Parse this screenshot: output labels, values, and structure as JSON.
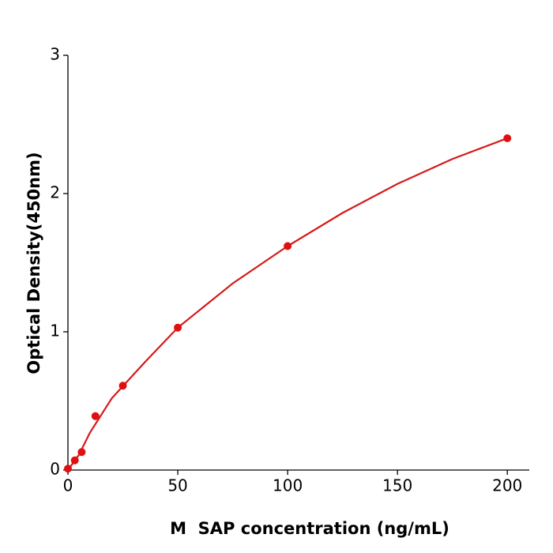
{
  "chart_data": {
    "type": "scatter",
    "x_label": "M  SAP concentration (ng/mL)",
    "y_label": "Optical Density(450nm)",
    "xlim": [
      0,
      210
    ],
    "xticks": [
      0,
      50,
      100,
      150,
      200
    ],
    "ylim": [
      0,
      3
    ],
    "yticks": [
      0,
      1,
      2,
      3
    ],
    "series": [
      {
        "style": "markers",
        "color": "#e01010",
        "x": [
          0,
          3.125,
          6.25,
          12.5,
          25,
          50,
          100,
          200
        ],
        "values": [
          0.01,
          0.07,
          0.13,
          0.39,
          0.61,
          1.03,
          1.62,
          2.4
        ]
      },
      {
        "style": "line",
        "color": "#d81818",
        "x": [
          0,
          5,
          10,
          20,
          35,
          50,
          75,
          100,
          125,
          150,
          175,
          200
        ],
        "values": [
          0,
          0.11,
          0.27,
          0.52,
          0.78,
          1.03,
          1.35,
          1.62,
          1.86,
          2.07,
          2.25,
          2.4
        ]
      }
    ]
  }
}
